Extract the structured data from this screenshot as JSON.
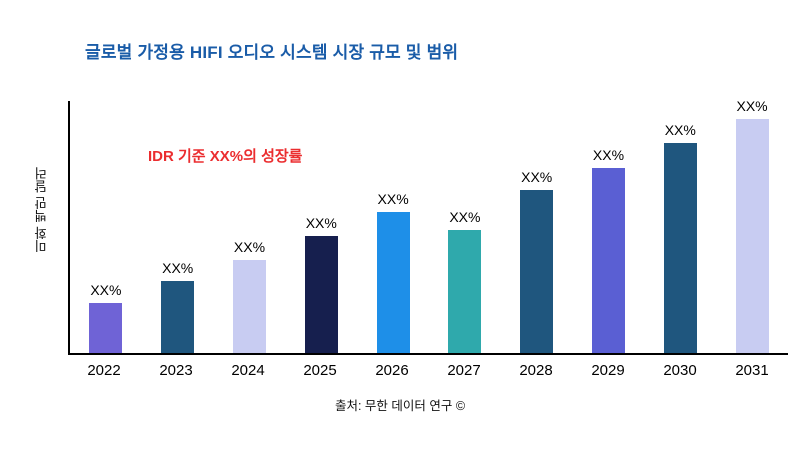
{
  "chart_data": {
    "type": "bar",
    "title": "글로벌 가정용 HIFI 오디오 시스템 시장 규모 및 범위",
    "ylabel": "미화 백만 달러",
    "xlabel": "",
    "annotation": "IDR 기준 XX%의 성장률",
    "source": "출처: 무한 데이터 연구 ©",
    "categories": [
      "2022",
      "2023",
      "2024",
      "2025",
      "2026",
      "2027",
      "2028",
      "2029",
      "2030",
      "2031"
    ],
    "values": [
      50,
      71,
      92,
      116,
      140,
      122,
      162,
      184,
      208,
      232
    ],
    "bar_labels": [
      "XX%",
      "XX%",
      "XX%",
      "XX%",
      "XX%",
      "XX%",
      "XX%",
      "XX%",
      "XX%",
      "XX%"
    ],
    "bar_colors": [
      "#6F63D6",
      "#1F567E",
      "#C8CCF2",
      "#161F4E",
      "#1E8FE8",
      "#2FA9AC",
      "#1F567E",
      "#5A5FD3",
      "#1F567E",
      "#C8CCF2"
    ],
    "ylim": [
      0,
      250
    ],
    "grid": false,
    "legend": false,
    "colors": {
      "title": "#1A5CA8",
      "annotation": "#EB2D2F",
      "axis": "#000000",
      "background": "#FFFFFF"
    }
  }
}
